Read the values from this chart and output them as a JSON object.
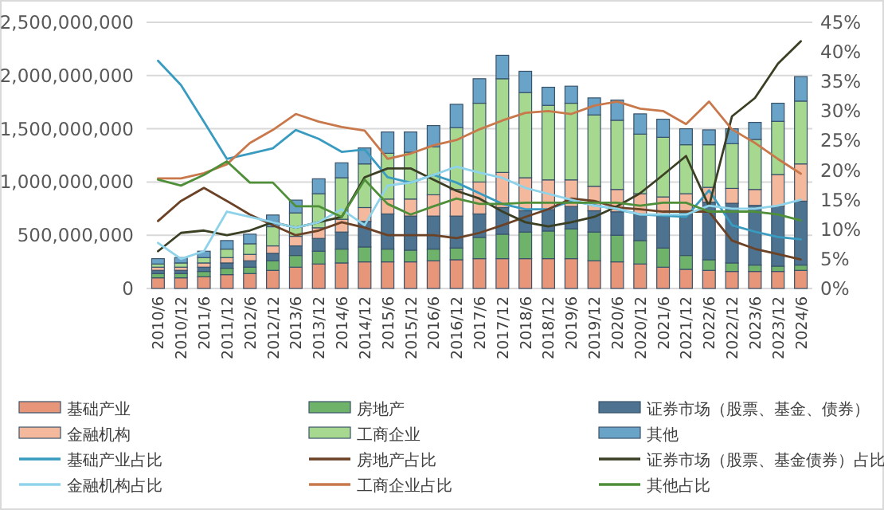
{
  "chart_data": {
    "type": "bar",
    "stacked": true,
    "grid": "y",
    "legend": "bottom",
    "categories": [
      "2010/6",
      "2010/12",
      "2011/6",
      "2011/12",
      "2012/6",
      "2012/12",
      "2013/6",
      "2013/12",
      "2014/6",
      "2014/12",
      "2015/6",
      "2015/12",
      "2016/6",
      "2016/12",
      "2017/6",
      "2017/12",
      "2018/6",
      "2018/12",
      "2019/6",
      "2019/12",
      "2020/6",
      "2020/12",
      "2021/6",
      "2021/12",
      "2022/6",
      "2022/12",
      "2023/6",
      "2023/12",
      "2024/6"
    ],
    "ylim": [
      0,
      2500000000
    ],
    "yticks": [
      {
        "value": 0,
        "label": "0"
      },
      {
        "value": 500000000,
        "label": "500,000,000"
      },
      {
        "value": 1000000000,
        "label": "1,000,000,000"
      },
      {
        "value": 1500000000,
        "label": "1,500,000,000"
      },
      {
        "value": 2000000000,
        "label": "2,000,000,000"
      },
      {
        "value": 2500000000,
        "label": "2,500,000,000"
      }
    ],
    "y2lim": [
      0,
      45
    ],
    "y2ticks": [
      {
        "value": 0,
        "label": "0%"
      },
      {
        "value": 5,
        "label": "5%"
      },
      {
        "value": 10,
        "label": "10%"
      },
      {
        "value": 15,
        "label": "15%"
      },
      {
        "value": 20,
        "label": "20%"
      },
      {
        "value": 25,
        "label": "25%"
      },
      {
        "value": 30,
        "label": "30%"
      },
      {
        "value": 35,
        "label": "35%"
      },
      {
        "value": 40,
        "label": "40%"
      },
      {
        "value": 45,
        "label": "45%"
      }
    ],
    "series": [
      {
        "name": "基础产业",
        "color": "#e8967a",
        "values": [
          100000000,
          100000000,
          110000000,
          130000000,
          140000000,
          170000000,
          200000000,
          230000000,
          240000000,
          250000000,
          250000000,
          250000000,
          260000000,
          270000000,
          280000000,
          280000000,
          280000000,
          280000000,
          280000000,
          260000000,
          250000000,
          230000000,
          200000000,
          180000000,
          170000000,
          160000000,
          160000000,
          160000000,
          170000000
        ]
      },
      {
        "name": "房地产",
        "color": "#6fb36a",
        "values": [
          40000000,
          40000000,
          50000000,
          60000000,
          60000000,
          90000000,
          110000000,
          120000000,
          130000000,
          140000000,
          120000000,
          110000000,
          110000000,
          110000000,
          200000000,
          230000000,
          250000000,
          260000000,
          280000000,
          270000000,
          250000000,
          220000000,
          180000000,
          130000000,
          100000000,
          80000000,
          60000000,
          50000000,
          50000000
        ]
      },
      {
        "name": "证券市场（股票、基金、债券）",
        "color": "#4d7391",
        "values": [
          30000000,
          30000000,
          40000000,
          50000000,
          60000000,
          70000000,
          90000000,
          120000000,
          160000000,
          240000000,
          330000000,
          320000000,
          310000000,
          300000000,
          220000000,
          250000000,
          200000000,
          200000000,
          210000000,
          200000000,
          220000000,
          250000000,
          300000000,
          420000000,
          540000000,
          560000000,
          560000000,
          560000000,
          600000000
        ]
      },
      {
        "name": "金融机构",
        "color": "#f4b89c",
        "values": [
          30000000,
          30000000,
          40000000,
          50000000,
          60000000,
          70000000,
          90000000,
          100000000,
          120000000,
          130000000,
          140000000,
          160000000,
          200000000,
          250000000,
          300000000,
          330000000,
          310000000,
          280000000,
          250000000,
          230000000,
          210000000,
          190000000,
          180000000,
          160000000,
          140000000,
          140000000,
          150000000,
          300000000,
          350000000
        ]
      },
      {
        "name": "工商企业",
        "color": "#a6d88f",
        "values": [
          30000000,
          40000000,
          50000000,
          80000000,
          100000000,
          180000000,
          220000000,
          320000000,
          390000000,
          410000000,
          430000000,
          440000000,
          450000000,
          580000000,
          740000000,
          880000000,
          800000000,
          700000000,
          720000000,
          670000000,
          650000000,
          560000000,
          560000000,
          460000000,
          400000000,
          420000000,
          470000000,
          500000000,
          590000000
        ]
      },
      {
        "name": "其他",
        "color": "#6aa3c8",
        "values": [
          50000000,
          50000000,
          60000000,
          80000000,
          90000000,
          110000000,
          120000000,
          140000000,
          140000000,
          150000000,
          200000000,
          190000000,
          200000000,
          220000000,
          230000000,
          220000000,
          200000000,
          170000000,
          160000000,
          160000000,
          190000000,
          190000000,
          170000000,
          150000000,
          140000000,
          140000000,
          160000000,
          170000000,
          230000000
        ]
      },
      {
        "name": "基础产业占比",
        "type": "line",
        "axis": "y2",
        "color": "#3a9bc1",
        "values": [
          38.5,
          34.4,
          28.2,
          21.9,
          22.8,
          23.7,
          26.8,
          25.3,
          23.1,
          23.5,
          18.8,
          17.9,
          19.2,
          17.9,
          16.1,
          14.3,
          13.4,
          13.4,
          14.8,
          14.1,
          13.4,
          12.5,
          12.3,
          12.1,
          16.6,
          10.7,
          9.6,
          8.7,
          8.3
        ]
      },
      {
        "name": "房地产占比",
        "type": "line",
        "axis": "y2",
        "color": "#6b4226",
        "values": [
          11.4,
          14.8,
          17,
          14.8,
          12.5,
          10.7,
          9,
          9.8,
          11.2,
          10.3,
          9,
          9,
          9,
          8.5,
          9.4,
          10.7,
          12.1,
          13.4,
          15.2,
          14.8,
          13.7,
          13.4,
          13,
          13,
          13,
          8.1,
          6.7,
          5.8,
          4.9
        ]
      },
      {
        "name": "证券市场（股票、基金债券）占比",
        "type": "line",
        "axis": "y2",
        "color": "#3b3f23",
        "values": [
          6.3,
          9.4,
          9.8,
          9,
          9.8,
          11.2,
          10.3,
          11.2,
          12.1,
          18.8,
          20.3,
          20.3,
          18.4,
          16.5,
          15.2,
          13,
          11.2,
          10.5,
          11.2,
          12.1,
          13.9,
          16.1,
          19.2,
          22.4,
          13.9,
          29.1,
          32.2,
          38,
          41.8
        ]
      },
      {
        "name": "金融机构占比",
        "type": "line",
        "axis": "y2",
        "color": "#8fd3ea",
        "values": [
          7.7,
          5,
          6.3,
          13,
          12.1,
          11.2,
          10.3,
          11.2,
          13.4,
          10.7,
          17.4,
          17.9,
          19.2,
          20.6,
          19.6,
          18.7,
          17,
          16,
          15,
          14,
          13.5,
          12.5,
          12.5,
          12.5,
          14,
          13.5,
          13.5,
          14,
          15
        ]
      },
      {
        "name": "工商企业占比",
        "type": "line",
        "axis": "y2",
        "color": "#c8784a",
        "values": [
          18.6,
          18.6,
          19.5,
          21,
          24.6,
          26.8,
          29.5,
          28.2,
          27.3,
          26.7,
          21.9,
          22.8,
          24.2,
          25.1,
          26.9,
          28.4,
          29.7,
          30,
          29.5,
          30.9,
          31.6,
          30.4,
          30,
          27.8,
          31.6,
          26.9,
          24.6,
          21.9,
          19.4
        ]
      },
      {
        "name": "其他占比",
        "type": "line",
        "axis": "y2",
        "color": "#4f8f3a",
        "values": [
          18.4,
          17.4,
          19.2,
          21.5,
          17.9,
          17.9,
          13.9,
          13.9,
          12.1,
          18.4,
          14.3,
          12.5,
          13.9,
          15.2,
          14.3,
          14.3,
          14.5,
          14.5,
          14.5,
          14.5,
          14.5,
          14,
          14.5,
          14.5,
          13,
          13,
          13,
          12.5,
          11.5
        ]
      }
    ]
  }
}
